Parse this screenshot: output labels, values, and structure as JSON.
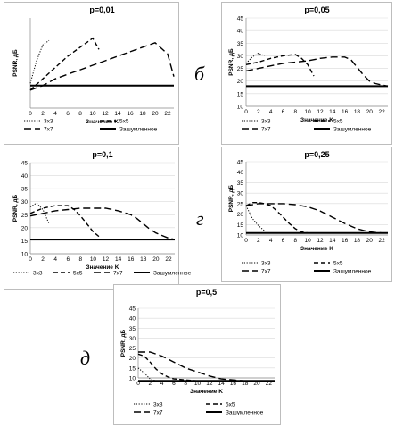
{
  "chart_data": [
    {
      "type": "line",
      "letter": "",
      "title": "p=0,01",
      "xlabel": "Значение K",
      "ylabel": "PSNR, дБ",
      "xticks": [
        0,
        2,
        4,
        6,
        8,
        10,
        12,
        14,
        16,
        18,
        20,
        22
      ],
      "yticks": [],
      "ylim": [
        20,
        40
      ],
      "series": [
        {
          "name": "3x3",
          "x": [
            0,
            1,
            2,
            3
          ],
          "y": [
            25.5,
            30.5,
            34,
            35
          ]
        },
        {
          "name": "5x5",
          "x": [
            0,
            2,
            4,
            6,
            8,
            10,
            11
          ],
          "y": [
            24,
            26.5,
            29,
            31.5,
            33.5,
            35.5,
            33
          ]
        },
        {
          "name": "7x7",
          "x": [
            0,
            2,
            4,
            6,
            8,
            10,
            12,
            14,
            16,
            18,
            20,
            22,
            23
          ],
          "y": [
            24,
            25,
            26.5,
            27.5,
            28.5,
            29.5,
            30.5,
            31.5,
            32.5,
            33.5,
            34.5,
            32,
            27
          ]
        },
        {
          "name": "Зашумленное",
          "x": [
            0,
            23
          ],
          "y": [
            25,
            25
          ]
        }
      ]
    },
    {
      "type": "line",
      "letter": "б",
      "title": "p=0,05",
      "xlabel": "Значение K",
      "ylabel": "PSNR, дБ",
      "xticks": [
        0,
        2,
        4,
        6,
        8,
        10,
        12,
        14,
        16,
        18,
        20,
        22
      ],
      "yticks": [
        10,
        15,
        20,
        25,
        30,
        35,
        40,
        45
      ],
      "ylim": [
        10,
        45
      ],
      "series": [
        {
          "name": "3x3",
          "x": [
            0,
            1,
            2,
            3
          ],
          "y": [
            27,
            29.5,
            31,
            30
          ]
        },
        {
          "name": "5x5",
          "x": [
            0,
            2,
            4,
            6,
            8,
            9,
            10,
            11
          ],
          "y": [
            26.5,
            27.5,
            29,
            30,
            30.5,
            29,
            26.5,
            22
          ]
        },
        {
          "name": "7x7",
          "x": [
            0,
            2,
            4,
            6,
            8,
            10,
            12,
            14,
            16,
            17,
            18,
            19,
            20,
            21,
            22,
            23
          ],
          "y": [
            24,
            25,
            26,
            27,
            27.5,
            28,
            29,
            29.5,
            29.5,
            28.5,
            25.5,
            22.5,
            20,
            19,
            18.5,
            18
          ]
        },
        {
          "name": "Зашумленное",
          "x": [
            0,
            23
          ],
          "y": [
            18,
            18
          ]
        }
      ]
    },
    {
      "type": "line",
      "letter": "",
      "title": "p=0,1",
      "xlabel": "Значение K",
      "ylabel": "PSNR, дБ",
      "xticks": [
        0,
        2,
        4,
        6,
        8,
        10,
        12,
        14,
        16,
        18,
        20,
        22
      ],
      "yticks": [
        10,
        15,
        20,
        25,
        30,
        35,
        40,
        45
      ],
      "ylim": [
        10,
        45
      ],
      "series": [
        {
          "name": "3x3",
          "x": [
            0,
            1,
            2,
            3
          ],
          "y": [
            28,
            29.5,
            27,
            21.5
          ]
        },
        {
          "name": "5x5",
          "x": [
            0,
            2,
            4,
            6,
            7,
            8,
            9,
            10,
            11
          ],
          "y": [
            25.5,
            27.5,
            28.5,
            28.5,
            27,
            24.5,
            21.5,
            18.5,
            16.5
          ]
        },
        {
          "name": "7x7",
          "x": [
            0,
            2,
            4,
            6,
            8,
            10,
            12,
            14,
            16,
            17,
            18,
            19,
            20,
            21,
            22,
            23
          ],
          "y": [
            24.5,
            25.5,
            26.5,
            27,
            27.5,
            27.5,
            27.5,
            26.5,
            25,
            23.5,
            21.5,
            19.5,
            18,
            17,
            16,
            15.5
          ]
        },
        {
          "name": "Зашумленное",
          "x": [
            0,
            23
          ],
          "y": [
            15.5,
            15.5
          ]
        }
      ]
    },
    {
      "type": "line",
      "letter": "г",
      "title": "p=0,25",
      "xlabel": "Значение K",
      "ylabel": "PSNR, дБ",
      "xticks": [
        0,
        2,
        4,
        6,
        8,
        10,
        12,
        14,
        16,
        18,
        20,
        22
      ],
      "yticks": [
        10,
        15,
        20,
        25,
        30,
        35,
        40,
        45
      ],
      "ylim": [
        10,
        45
      ],
      "series": [
        {
          "name": "3x3",
          "x": [
            0,
            1,
            2,
            3
          ],
          "y": [
            24,
            18,
            14.5,
            12
          ]
        },
        {
          "name": "5x5",
          "x": [
            0,
            1,
            2,
            3,
            4,
            5,
            6,
            7,
            8,
            9,
            10,
            11
          ],
          "y": [
            24,
            25.5,
            25.5,
            25,
            24,
            21.5,
            18.5,
            15.5,
            13,
            11.5,
            11,
            11
          ]
        },
        {
          "name": "7x7",
          "x": [
            0,
            2,
            4,
            6,
            8,
            10,
            12,
            14,
            16,
            18,
            20,
            22,
            23
          ],
          "y": [
            24,
            25,
            25,
            25,
            24.5,
            23.5,
            21.5,
            18.5,
            15.5,
            13,
            11.5,
            11,
            11
          ]
        },
        {
          "name": "Зашумленное",
          "x": [
            0,
            23
          ],
          "y": [
            11,
            11
          ]
        }
      ]
    },
    {
      "type": "line",
      "letter": "д",
      "title": "p=0,5",
      "xlabel": "Значение K",
      "ylabel": "PSNR, дБ",
      "xticks": [
        0,
        2,
        4,
        6,
        8,
        10,
        12,
        14,
        16,
        18,
        20,
        22
      ],
      "yticks": [
        10,
        15,
        20,
        25,
        30,
        35,
        40,
        45
      ],
      "ylim": [
        10,
        45
      ],
      "series": [
        {
          "name": "3x3",
          "x": [
            0,
            1,
            2,
            3
          ],
          "y": [
            15,
            12.5,
            9.5,
            8.5
          ]
        },
        {
          "name": "5x5",
          "x": [
            0,
            1,
            2,
            3,
            4,
            5,
            6,
            8,
            10,
            12
          ],
          "y": [
            22,
            21,
            18,
            14.5,
            12,
            10.5,
            9.5,
            9,
            8.5,
            8.5
          ]
        },
        {
          "name": "7x7",
          "x": [
            0,
            2,
            4,
            6,
            8,
            10,
            12,
            14,
            16,
            18,
            20,
            22,
            23
          ],
          "y": [
            23,
            23,
            21,
            18,
            15,
            13,
            11,
            9.5,
            9,
            8.5,
            8.5,
            8.5,
            8.5
          ]
        },
        {
          "name": "Зашумленное",
          "x": [
            0,
            23
          ],
          "y": [
            8.5,
            8.5
          ]
        }
      ]
    }
  ],
  "colors": {
    "lines": "#000000",
    "grid": "#d9d9d9",
    "border": "#bdbdbd"
  }
}
